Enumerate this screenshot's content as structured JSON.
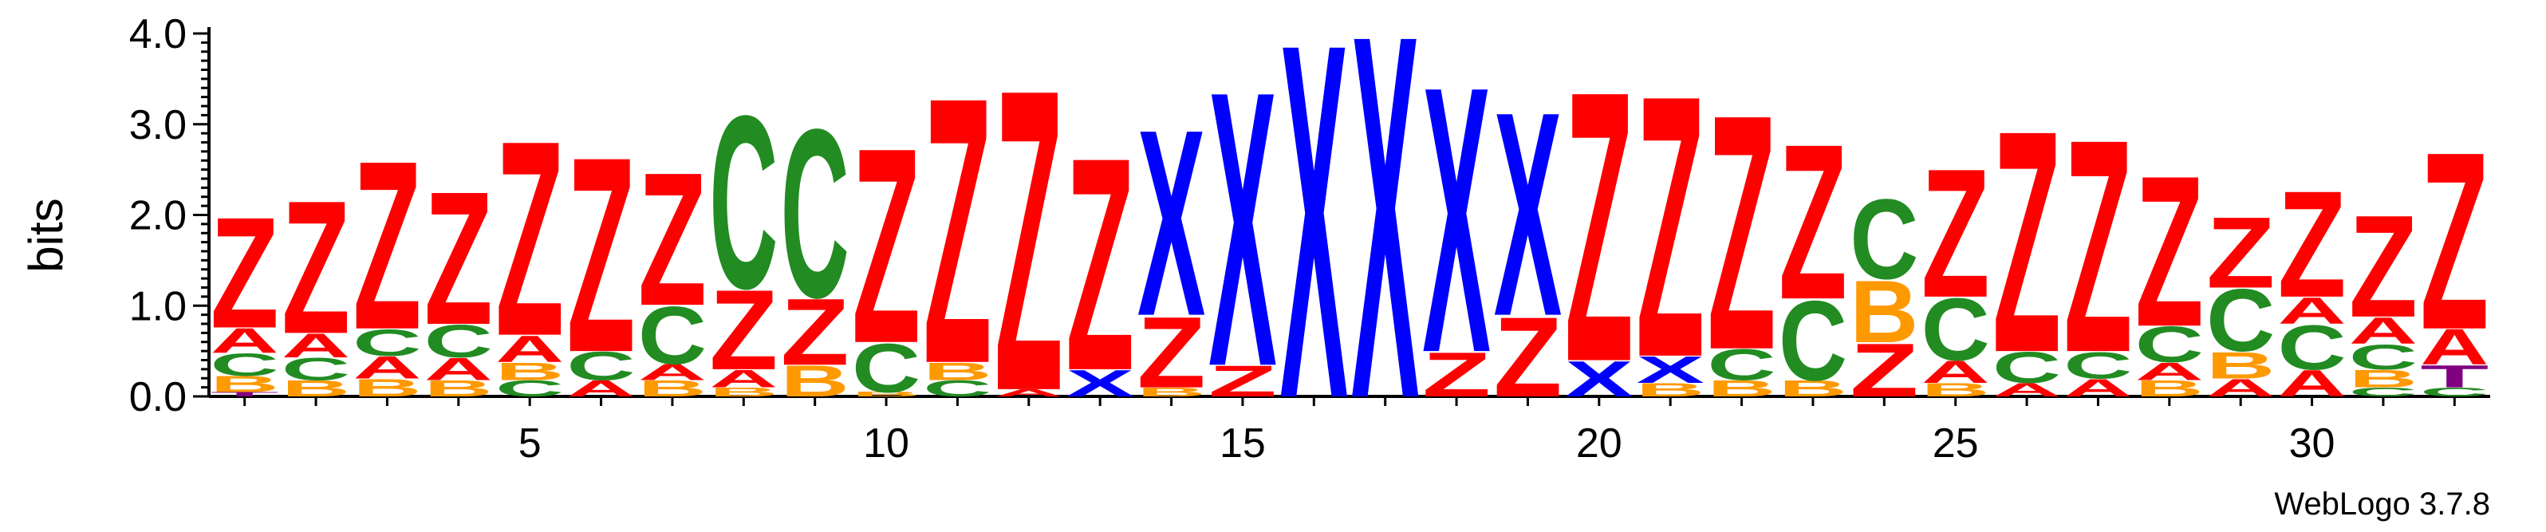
{
  "chart_data": {
    "type": "sequence-logo",
    "ylabel": "bits",
    "ylim": [
      0,
      4.0
    ],
    "y_ticks": [
      "0.0",
      "1.0",
      "2.0",
      "3.0",
      "4.0"
    ],
    "x_ticks": [
      "5",
      "10",
      "15",
      "20",
      "25",
      "30"
    ],
    "x_tick_positions": [
      5,
      10,
      15,
      20,
      25,
      30
    ],
    "positions": 32,
    "footer": "WebLogo 3.7.8",
    "colors": {
      "Z": "#ff0000",
      "X": "#0000ff",
      "C": "#228b22",
      "A": "#ff0000",
      "B": "#ff9900",
      "T": "#800080"
    },
    "columns": [
      [
        [
          "T",
          0.05
        ],
        [
          "B",
          0.18
        ],
        [
          "C",
          0.25
        ],
        [
          "A",
          0.28
        ],
        [
          "Z",
          1.25
        ]
      ],
      [
        [
          "B",
          0.18
        ],
        [
          "C",
          0.25
        ],
        [
          "A",
          0.27
        ],
        [
          "Z",
          1.5
        ]
      ],
      [
        [
          "B",
          0.2
        ],
        [
          "A",
          0.25
        ],
        [
          "C",
          0.3
        ],
        [
          "Z",
          1.9
        ]
      ],
      [
        [
          "B",
          0.18
        ],
        [
          "A",
          0.25
        ],
        [
          "C",
          0.37
        ],
        [
          "Z",
          1.5
        ]
      ],
      [
        [
          "C",
          0.18
        ],
        [
          "B",
          0.2
        ],
        [
          "A",
          0.3
        ],
        [
          "Z",
          2.2
        ]
      ],
      [
        [
          "A",
          0.18
        ],
        [
          "C",
          0.32
        ],
        [
          "Z",
          2.2
        ]
      ],
      [
        [
          "B",
          0.18
        ],
        [
          "A",
          0.18
        ],
        [
          "C",
          0.65
        ],
        [
          "Z",
          1.5
        ]
      ],
      [
        [
          "B",
          0.1
        ],
        [
          "A",
          0.2
        ],
        [
          "Z",
          0.9
        ],
        [
          "C",
          1.95
        ]
      ],
      [
        [
          "B",
          0.35
        ],
        [
          "Z",
          0.75
        ],
        [
          "C",
          1.9
        ]
      ],
      [
        [
          "B",
          0.05
        ],
        [
          "C",
          0.55
        ],
        [
          "Z",
          2.2
        ]
      ],
      [
        [
          "C",
          0.18
        ],
        [
          "B",
          0.2
        ],
        [
          "Z",
          3.0
        ]
      ],
      [
        [
          "A",
          0.08
        ],
        [
          "Z",
          3.4
        ]
      ],
      [
        [
          "X",
          0.3
        ],
        [
          "Z",
          2.4
        ]
      ],
      [
        [
          "B",
          0.1
        ],
        [
          "Z",
          0.8
        ],
        [
          "X",
          2.1
        ]
      ],
      [
        [
          "Z",
          0.35
        ],
        [
          "X",
          3.1
        ]
      ],
      [
        [
          "X",
          4.0
        ]
      ],
      [
        [
          "X",
          4.1
        ]
      ],
      [
        [
          "Z",
          0.5
        ],
        [
          "X",
          3.0
        ]
      ],
      [
        [
          "Z",
          0.9
        ],
        [
          "X",
          2.3
        ]
      ],
      [
        [
          "X",
          0.4
        ],
        [
          "Z",
          3.05
        ]
      ],
      [
        [
          "B",
          0.15
        ],
        [
          "X",
          0.3
        ],
        [
          "Z",
          2.95
        ]
      ],
      [
        [
          "B",
          0.18
        ],
        [
          "C",
          0.35
        ],
        [
          "Z",
          2.65
        ]
      ],
      [
        [
          "B",
          0.18
        ],
        [
          "C",
          0.9
        ],
        [
          "Z",
          1.75
        ]
      ],
      [
        [
          "Z",
          0.6
        ],
        [
          "B",
          0.7
        ],
        [
          "C",
          0.9
        ]
      ],
      [
        [
          "B",
          0.15
        ],
        [
          "A",
          0.25
        ],
        [
          "C",
          0.7
        ],
        [
          "Z",
          1.45
        ]
      ],
      [
        [
          "A",
          0.15
        ],
        [
          "C",
          0.35
        ],
        [
          "Z",
          2.5
        ]
      ],
      [
        [
          "A",
          0.2
        ],
        [
          "C",
          0.3
        ],
        [
          "Z",
          2.4
        ]
      ],
      [
        [
          "B",
          0.18
        ],
        [
          "A",
          0.2
        ],
        [
          "C",
          0.4
        ],
        [
          "Z",
          1.7
        ]
      ],
      [
        [
          "A",
          0.2
        ],
        [
          "B",
          0.3
        ],
        [
          "C",
          0.7
        ],
        [
          "Z",
          0.8
        ]
      ],
      [
        [
          "A",
          0.3
        ],
        [
          "C",
          0.5
        ],
        [
          "A",
          0.3
        ],
        [
          "Z",
          1.2
        ]
      ],
      [
        [
          "C",
          0.1
        ],
        [
          "B",
          0.2
        ],
        [
          "C",
          0.28
        ],
        [
          "A",
          0.3
        ],
        [
          "Z",
          1.15
        ]
      ],
      [
        [
          "C",
          0.1
        ],
        [
          "T",
          0.25
        ],
        [
          "A",
          0.4
        ],
        [
          "Z",
          2.0
        ]
      ]
    ]
  }
}
